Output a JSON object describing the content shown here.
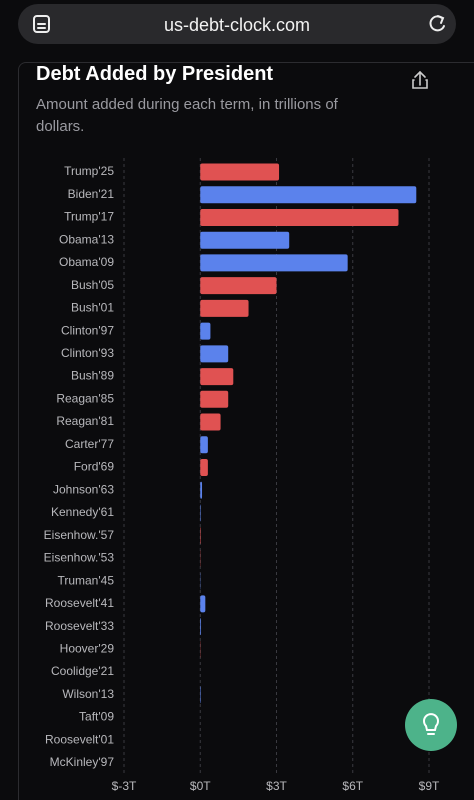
{
  "url": "us-debt-clock.com",
  "chart_data": {
    "type": "bar",
    "orientation": "horizontal",
    "title": "Debt Added by President",
    "subtitle": "Amount added during each term, in trillions of dollars.",
    "categories": [
      "Trump'25",
      "Biden'21",
      "Trump'17",
      "Obama'13",
      "Obama'09",
      "Bush'05",
      "Bush'01",
      "Clinton'97",
      "Clinton'93",
      "Bush'89",
      "Reagan'85",
      "Reagan'81",
      "Carter'77",
      "Ford'69",
      "Johnson'63",
      "Kennedy'61",
      "Eisenhow.'57",
      "Eisenhow.'53",
      "Truman'45",
      "Roosevelt'41",
      "Roosevelt'33",
      "Hoover'29",
      "Coolidge'21",
      "Wilson'13",
      "Taft'09",
      "Roosevelt'01",
      "McKinley'97"
    ],
    "values": [
      3.1,
      8.5,
      7.8,
      3.5,
      5.8,
      3.0,
      1.9,
      0.4,
      1.1,
      1.3,
      1.1,
      0.8,
      0.3,
      0.3,
      0.07,
      0.02,
      0.02,
      0.01,
      0.01,
      0.2,
      0.03,
      0.01,
      0,
      0.02,
      0,
      0,
      0
    ],
    "colors": [
      "#e05252",
      "#5b82ec",
      "#e05252",
      "#5b82ec",
      "#5b82ec",
      "#e05252",
      "#e05252",
      "#5b82ec",
      "#5b82ec",
      "#e05252",
      "#e05252",
      "#e05252",
      "#5b82ec",
      "#e05252",
      "#5b82ec",
      "#5b82ec",
      "#e05252",
      "#e05252",
      "#5b82ec",
      "#5b82ec",
      "#5b82ec",
      "#e05252",
      "#e05252",
      "#5b82ec",
      "#e05252",
      "#e05252",
      "#e05252"
    ],
    "xlim": [
      -3,
      9
    ],
    "xticks": [
      {
        "value": -3,
        "label": "$-3T"
      },
      {
        "value": 0,
        "label": "$0T"
      },
      {
        "value": 3,
        "label": "$3T"
      },
      {
        "value": 6,
        "label": "$6T"
      },
      {
        "value": 9,
        "label": "$9T"
      }
    ],
    "grid": true
  }
}
